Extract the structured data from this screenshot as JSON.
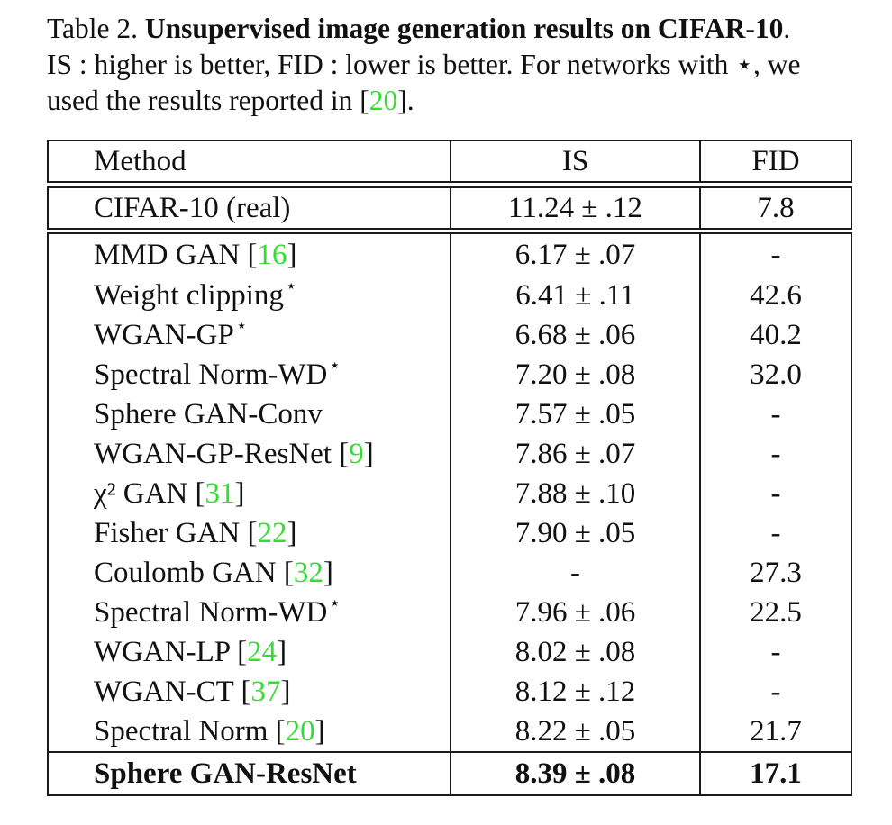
{
  "caption": {
    "label": "Table 2.",
    "title": "Unsupervised image generation results on CIFAR-10",
    "line2": "IS : higher is better, FID : lower is better. For networks with ⋆, we",
    "line3_pre": "used the results reported in [",
    "line3_ref": "20",
    "line3_post": "]."
  },
  "header": {
    "method": "Method",
    "is": "IS",
    "fid": "FID"
  },
  "real_row": {
    "method": "CIFAR-10 (real)",
    "is": "11.24 ± .12",
    "fid": "7.8"
  },
  "rows": [
    {
      "name": "MMD GAN [",
      "ref": "16",
      "post": "]",
      "star": "",
      "is": "6.17 ± .07",
      "fid": "-"
    },
    {
      "name": "Weight clipping",
      "ref": "",
      "post": "",
      "star": "⋆",
      "is": "6.41 ± .11",
      "fid": "42.6"
    },
    {
      "name": "WGAN-GP",
      "ref": "",
      "post": "",
      "star": "⋆",
      "is": "6.68 ± .06",
      "fid": "40.2"
    },
    {
      "name": "Spectral Norm-WD",
      "ref": "",
      "post": "",
      "star": "⋆",
      "is": "7.20 ± .08",
      "fid": "32.0"
    },
    {
      "name": "Sphere GAN-Conv",
      "ref": "",
      "post": "",
      "star": "",
      "is": "7.57 ± .05",
      "fid": "-"
    },
    {
      "name": "WGAN-GP-ResNet [",
      "ref": "9",
      "post": "]",
      "star": "",
      "is": "7.86 ± .07",
      "fid": "-"
    },
    {
      "name": "χ² GAN [",
      "ref": "31",
      "post": "]",
      "star": "",
      "is": "7.88 ± .10",
      "fid": "-"
    },
    {
      "name": "Fisher GAN [",
      "ref": "22",
      "post": "]",
      "star": "",
      "is": "7.90 ± .05",
      "fid": "-"
    },
    {
      "name": "Coulomb GAN [",
      "ref": "32",
      "post": "]",
      "star": "",
      "is": "-",
      "fid": "27.3"
    },
    {
      "name": "Spectral Norm-WD",
      "ref": "",
      "post": "",
      "star": "⋆",
      "is": "7.96 ± .06",
      "fid": "22.5"
    },
    {
      "name": "WGAN-LP [",
      "ref": "24",
      "post": "]",
      "star": "",
      "is": "8.02 ± .08",
      "fid": "-"
    },
    {
      "name": "WGAN-CT [",
      "ref": "37",
      "post": "]",
      "star": "",
      "is": "8.12 ± .12",
      "fid": "-"
    },
    {
      "name": "Spectral Norm [",
      "ref": "20",
      "post": "]",
      "star": "",
      "is": "8.22 ± .05",
      "fid": "21.7"
    }
  ],
  "final_row": {
    "method": "Sphere GAN-ResNet",
    "is": "8.39 ± .08",
    "fid": "17.1"
  },
  "colors": {
    "citation": "#33dd33",
    "text": "#111111",
    "border": "#1a1a1a"
  }
}
